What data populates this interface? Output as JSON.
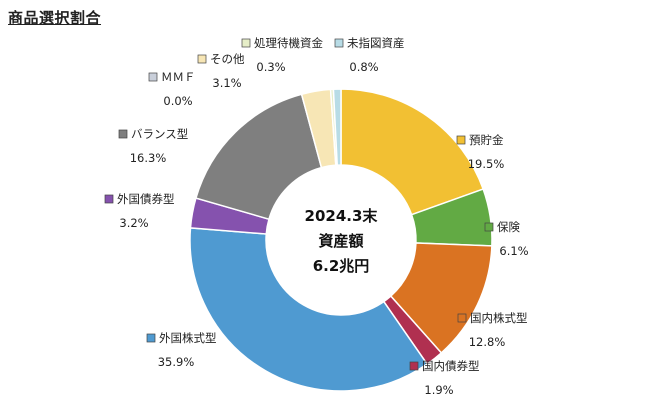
{
  "title": "商品選択割合",
  "chart_data": {
    "type": "pie",
    "style": "donut",
    "center_label": [
      "2024.3末",
      "資産額",
      "6.2兆円"
    ],
    "slices": [
      {
        "name": "預貯金",
        "value": 19.5,
        "label": "19.5%",
        "color": "#F2C033"
      },
      {
        "name": "保険",
        "value": 6.1,
        "label": "6.1%",
        "color": "#62AA44"
      },
      {
        "name": "国内株式型",
        "value": 12.8,
        "label": "12.8%",
        "color": "#DA7322"
      },
      {
        "name": "国内債券型",
        "value": 1.9,
        "label": "1.9%",
        "color": "#B03050"
      },
      {
        "name": "外国株式型",
        "value": 35.9,
        "label": "35.9%",
        "color": "#4F9AD1"
      },
      {
        "name": "外国債券型",
        "value": 3.2,
        "label": "3.2%",
        "color": "#8552AE"
      },
      {
        "name": "バランス型",
        "value": 16.3,
        "label": "16.3%",
        "color": "#7F7F7F"
      },
      {
        "name": "ＭＭＦ",
        "value": 0.0,
        "label": "0.0%",
        "color": "#C9CFDA"
      },
      {
        "name": "その他",
        "value": 3.1,
        "label": "3.1%",
        "color": "#F7E6B5"
      },
      {
        "name": "処理待機資金",
        "value": 0.3,
        "label": "0.3%",
        "color": "#E6EEC8"
      },
      {
        "name": "未指図資産",
        "value": 0.8,
        "label": "0.8%",
        "color": "#B8DCE6"
      }
    ]
  }
}
